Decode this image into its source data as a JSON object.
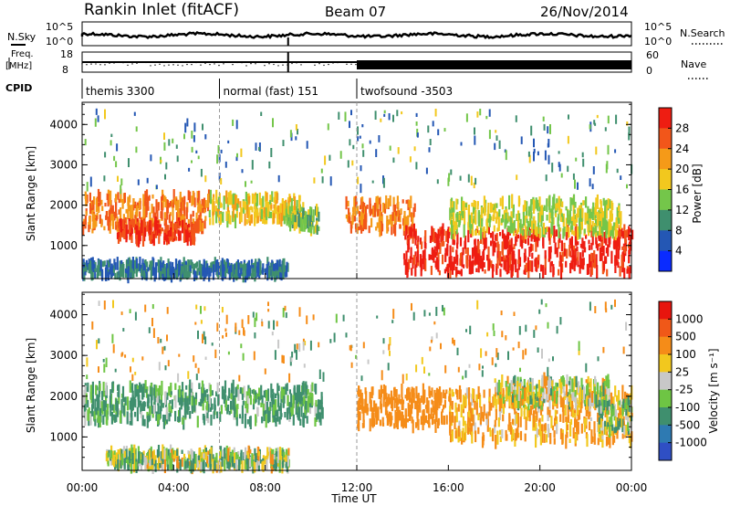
{
  "header": {
    "station": "Rankin Inlet (fitACF)",
    "beam": "Beam 07",
    "date": "26/Nov/2014"
  },
  "panels": {
    "nsky_label": "N.Sky",
    "nsearch_label": "N.Search",
    "freq_label_1": "Freq.",
    "freq_label_2": "[MHz]",
    "nave_label": "Nave",
    "cpid_label": "CPID",
    "nsky_ticks": [
      "10^5",
      "10^0"
    ],
    "nsearch_ticks": [
      "10^5",
      "10^0"
    ],
    "freq_ticks": [
      "18",
      "8"
    ],
    "nave_ticks": [
      "60",
      "0"
    ],
    "cpid_segments": [
      {
        "label": "themis 3300",
        "start": 0,
        "end": 6
      },
      {
        "label": "normal (fast) 151",
        "start": 6,
        "end": 12
      },
      {
        "label": "twofsound -3503",
        "start": 12,
        "end": 24
      }
    ]
  },
  "axis": {
    "xlabel": "Time UT",
    "xticks": [
      "00:00",
      "04:00",
      "08:00",
      "12:00",
      "16:00",
      "20:00",
      "00:00"
    ],
    "ylabel": "Slant Range [km]",
    "yticks": [
      "1000",
      "2000",
      "3000",
      "4000"
    ]
  },
  "colorbars": {
    "power": {
      "label": "Power [dB]",
      "ticks": [
        "4",
        "8",
        "12",
        "16",
        "20",
        "24",
        "28"
      ],
      "colors": [
        "#0a2bff",
        "#2457b4",
        "#3f8f6e",
        "#74c64a",
        "#f2c81e",
        "#f59a18",
        "#f2561a",
        "#ee1d12"
      ]
    },
    "velocity": {
      "label": "Velocity [m s⁻¹]",
      "ticks": [
        "1000",
        "500",
        "100",
        "25",
        "-25",
        "-100",
        "-500",
        "-1000"
      ],
      "colors": [
        "#2f4fc4",
        "#2e7ab2",
        "#3f8f6e",
        "#6ec544",
        "#c8c8c8",
        "#f2c81e",
        "#f58c18",
        "#f05818",
        "#e8150e"
      ]
    }
  },
  "chart_data": [
    {
      "type": "heatmap",
      "title": "Power",
      "xlabel": "Time UT",
      "ylabel": "Slant Range [km]",
      "xlim": [
        0,
        24
      ],
      "ylim": [
        180,
        4550
      ],
      "colorbar_label": "Power [dB]",
      "colorbar_range": [
        0,
        32
      ],
      "features": [
        {
          "t_start": 0.0,
          "t_end": 5.5,
          "r_center": 1800,
          "r_width": 500,
          "value": 24
        },
        {
          "t_start": 1.5,
          "t_end": 5.0,
          "r_center": 1350,
          "r_width": 250,
          "value": 28
        },
        {
          "t_start": 5.5,
          "t_end": 9.5,
          "r_center": 1900,
          "r_width": 350,
          "value": 18
        },
        {
          "t_start": 9.0,
          "t_end": 10.3,
          "r_center": 1650,
          "r_width": 300,
          "value": 14
        },
        {
          "t_start": 11.5,
          "t_end": 14.5,
          "r_center": 1750,
          "r_width": 400,
          "value": 24
        },
        {
          "t_start": 14.0,
          "t_end": 24.0,
          "r_center": 850,
          "r_width": 600,
          "value": 30
        },
        {
          "t_start": 16.0,
          "t_end": 23.5,
          "r_center": 1700,
          "r_width": 450,
          "value": 16
        },
        {
          "t_start": 0.0,
          "t_end": 9.0,
          "r_center": 400,
          "r_width": 180,
          "value": 8
        }
      ]
    },
    {
      "type": "heatmap",
      "title": "Velocity",
      "xlabel": "Time UT",
      "ylabel": "Slant Range [km]",
      "xlim": [
        0,
        24
      ],
      "ylim": [
        180,
        4550
      ],
      "colorbar_label": "Velocity [m s⁻¹]",
      "colorbar_range": [
        -1000,
        1000
      ],
      "features": [
        {
          "t_start": 0.0,
          "t_end": 10.5,
          "r_center": 1800,
          "r_width": 500,
          "value": 150
        },
        {
          "t_start": 12.0,
          "t_end": 16.0,
          "r_center": 1700,
          "r_width": 500,
          "value": -300
        },
        {
          "t_start": 16.0,
          "t_end": 24.0,
          "r_center": 1500,
          "r_width": 700,
          "value": -150
        },
        {
          "t_start": 18.0,
          "t_end": 23.0,
          "r_center": 2100,
          "r_width": 350,
          "value": 0
        },
        {
          "t_start": 22.5,
          "t_end": 24.0,
          "r_center": 1500,
          "r_width": 400,
          "value": 80
        },
        {
          "t_start": 1.0,
          "t_end": 9.0,
          "r_center": 450,
          "r_width": 220,
          "value": 30
        }
      ]
    }
  ]
}
